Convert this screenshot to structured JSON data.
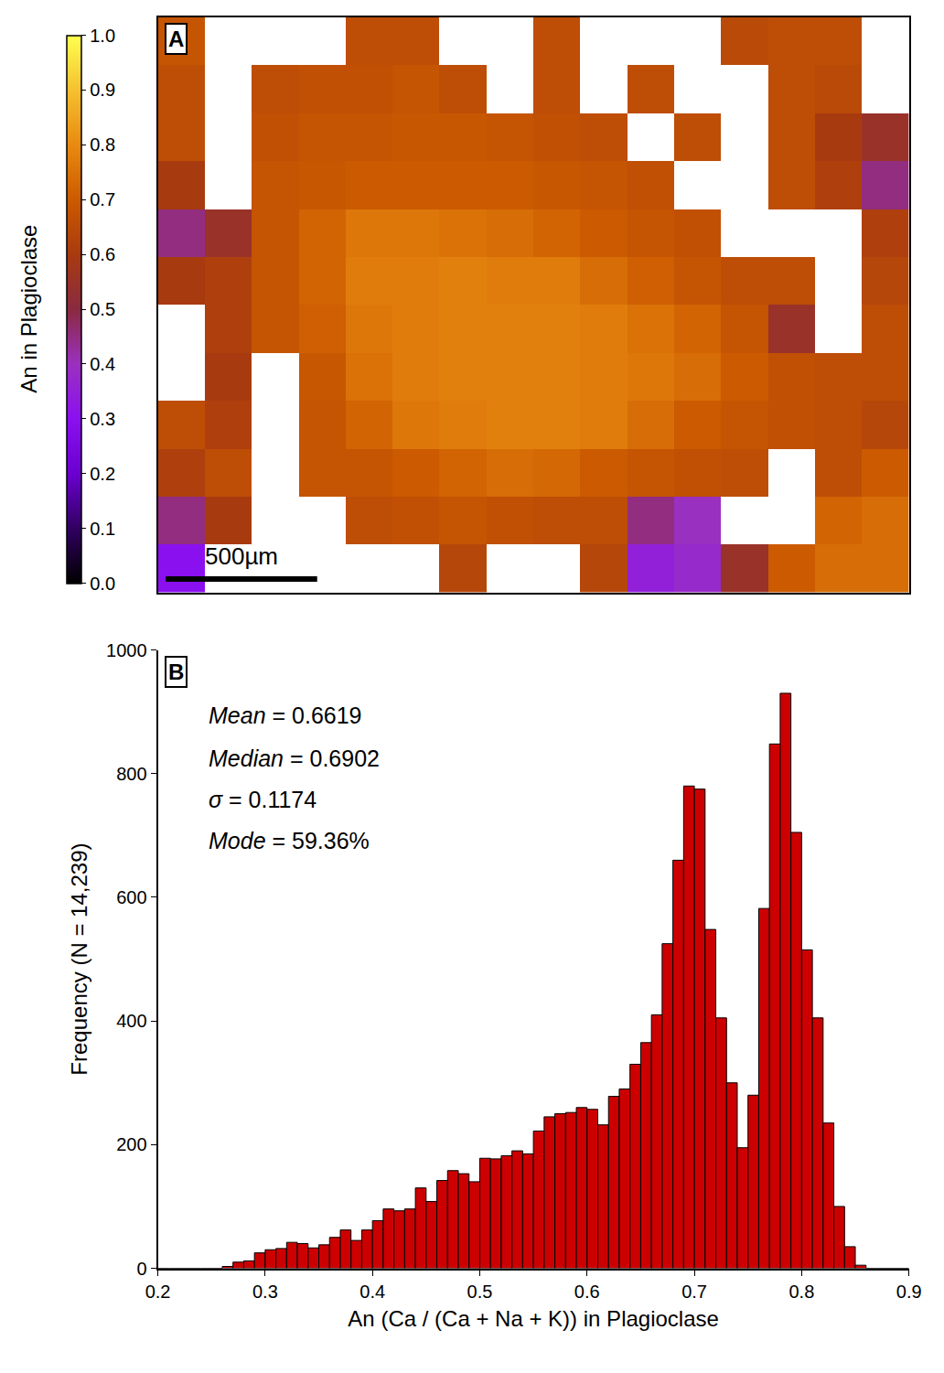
{
  "chart_data": [
    {
      "type": "heatmap",
      "panel": "A",
      "x": [
        0,
        155,
        310,
        465,
        620,
        775,
        930,
        1085,
        1240,
        1395,
        1550,
        1705,
        1860,
        2015,
        2170,
        2325,
        2480
      ],
      "y": [
        0,
        156,
        312,
        468,
        624,
        780,
        936,
        1092,
        1248,
        1404,
        1560,
        1716,
        1872
      ],
      "z": [
        [
          0.68,
          null,
          null,
          null,
          0.66,
          0.66,
          null,
          null,
          0.66,
          null,
          null,
          null,
          0.65,
          0.66,
          0.66,
          null
        ],
        [
          0.66,
          null,
          0.66,
          0.67,
          0.67,
          0.68,
          0.66,
          null,
          0.66,
          null,
          0.66,
          null,
          null,
          0.66,
          0.65,
          null
        ],
        [
          0.66,
          null,
          0.67,
          0.68,
          0.68,
          0.69,
          0.69,
          0.68,
          0.67,
          0.66,
          null,
          0.66,
          null,
          0.66,
          0.6,
          0.55
        ],
        [
          0.6,
          null,
          0.68,
          0.69,
          0.7,
          0.7,
          0.7,
          0.7,
          0.69,
          0.68,
          0.67,
          null,
          null,
          0.66,
          0.62,
          0.45
        ],
        [
          0.45,
          0.55,
          0.68,
          0.72,
          0.76,
          0.76,
          0.75,
          0.74,
          0.72,
          0.7,
          0.68,
          0.67,
          null,
          null,
          null,
          0.62
        ],
        [
          0.6,
          0.62,
          0.68,
          0.72,
          0.77,
          0.77,
          0.78,
          0.77,
          0.77,
          0.74,
          0.71,
          0.68,
          0.66,
          0.66,
          null,
          0.64
        ],
        [
          null,
          0.62,
          0.68,
          0.71,
          0.76,
          0.77,
          0.78,
          0.78,
          0.78,
          0.77,
          0.75,
          0.72,
          0.68,
          0.55,
          null,
          0.66
        ],
        [
          null,
          0.6,
          null,
          0.69,
          0.75,
          0.77,
          0.78,
          0.78,
          0.78,
          0.77,
          0.76,
          0.74,
          0.7,
          0.67,
          0.66,
          0.66
        ],
        [
          0.66,
          0.62,
          null,
          0.68,
          0.72,
          0.76,
          0.77,
          0.78,
          0.78,
          0.77,
          0.74,
          0.7,
          0.68,
          0.67,
          0.66,
          0.64
        ],
        [
          0.62,
          0.66,
          null,
          0.68,
          0.68,
          0.7,
          0.72,
          0.74,
          0.73,
          0.7,
          0.68,
          0.67,
          0.66,
          null,
          0.66,
          0.7
        ],
        [
          0.45,
          0.6,
          null,
          null,
          0.66,
          0.67,
          0.68,
          0.67,
          0.66,
          0.66,
          0.45,
          0.4,
          null,
          null,
          0.72,
          0.74
        ],
        [
          0.3,
          null,
          null,
          null,
          null,
          null,
          0.64,
          null,
          null,
          0.64,
          0.35,
          0.38,
          0.55,
          0.7,
          0.74,
          0.74
        ]
      ],
      "xlim": [
        0,
        2480
      ],
      "ylim": [
        1872,
        0
      ],
      "tick_labels": false,
      "colorbar": {
        "title": "An in Plagioclase",
        "range": [
          0,
          1
        ],
        "ticks": [
          {
            "value": 0,
            "label": "0.0"
          },
          0.1,
          0.2,
          0.3,
          0.4,
          0.5,
          0.6,
          0.7,
          0.8,
          0.9,
          {
            "value": 1,
            "label": "1.0"
          }
        ]
      },
      "scale_bar": {
        "length": 500,
        "label": "500µm"
      }
    },
    {
      "type": "histogram",
      "panel": "B",
      "bins": [
        0.2,
        0.21,
        0.22,
        0.23,
        0.24,
        0.25,
        0.26,
        0.27,
        0.28,
        0.29,
        0.3,
        0.31,
        0.32,
        0.33,
        0.34,
        0.35,
        0.36,
        0.37,
        0.38,
        0.39,
        0.4,
        0.41,
        0.42,
        0.43,
        0.44,
        0.45,
        0.46,
        0.47,
        0.48,
        0.49,
        0.5,
        0.51,
        0.52,
        0.53,
        0.54,
        0.55,
        0.56,
        0.57,
        0.58,
        0.59,
        0.6,
        0.61,
        0.62,
        0.63,
        0.64,
        0.65,
        0.66,
        0.67,
        0.68,
        0.69,
        0.7,
        0.71,
        0.72,
        0.73,
        0.74,
        0.75,
        0.76,
        0.77,
        0.78,
        0.79,
        0.8,
        0.81,
        0.82,
        0.83,
        0.84,
        0.85,
        0.86,
        0.87,
        0.88,
        0.89,
        0.9
      ],
      "values": [
        0,
        0,
        0,
        0,
        0,
        0,
        3,
        10,
        12,
        25,
        30,
        32,
        42,
        40,
        33,
        38,
        50,
        62,
        45,
        62,
        77,
        96,
        93,
        96,
        130,
        108,
        142,
        158,
        153,
        140,
        178,
        177,
        182,
        190,
        185,
        222,
        245,
        250,
        252,
        260,
        257,
        232,
        278,
        290,
        330,
        365,
        410,
        525,
        660,
        780,
        775,
        548,
        405,
        300,
        195,
        280,
        582,
        848,
        930,
        705,
        515,
        405,
        235,
        100,
        35,
        5,
        0,
        0,
        0,
        0
      ],
      "color": "#cc0000",
      "xlim": [
        0.2,
        0.9
      ],
      "ylim": [
        0,
        1000
      ],
      "xticks": [
        0.2,
        0.3,
        0.4,
        0.5,
        0.6,
        0.7,
        0.8,
        0.9
      ],
      "yticks": [
        0,
        200,
        400,
        600,
        800,
        1000
      ],
      "x_label": "An (Ca / (Ca + Na + K)) in Plagioclase",
      "y_label": "Frequency (N = 14,239)",
      "annotations": [
        {
          "italic": "Mean",
          "text": " = 0.6619"
        },
        {
          "italic": "Median",
          "text": " = 0.6902"
        },
        {
          "italic": "σ",
          "text": " = 0.1174"
        },
        {
          "italic": "Mode",
          "text": " = 59.36%"
        }
      ]
    }
  ]
}
